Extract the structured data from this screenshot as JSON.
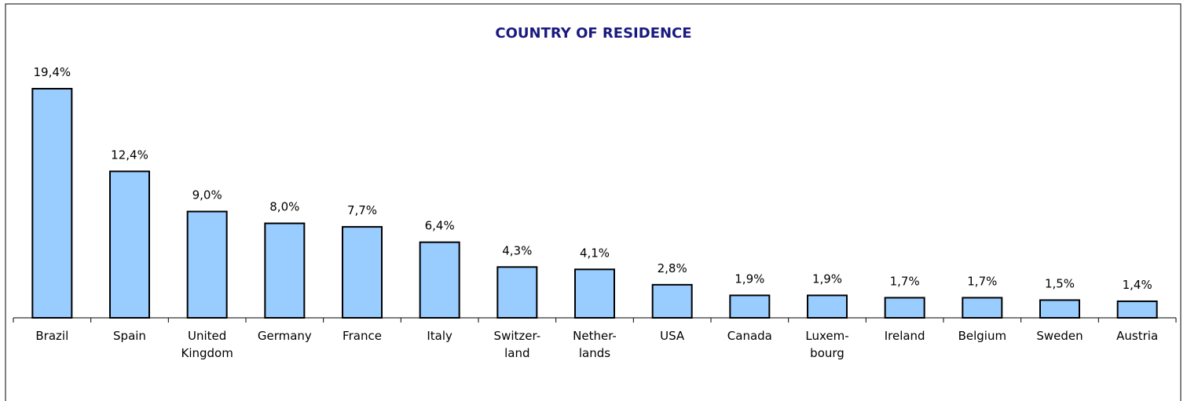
{
  "chart_data": {
    "type": "bar",
    "title": "COUNTRY OF RESIDENCE",
    "categories": [
      "Brazil",
      "Spain",
      "United\nKingdom",
      "Germany",
      "France",
      "Italy",
      "Switzer-\nland",
      "Nether-\nlands",
      "USA",
      "Canada",
      "Luxem-\nbourg",
      "Ireland",
      "Belgium",
      "Sweden",
      "Austria"
    ],
    "values": [
      19.4,
      12.4,
      9.0,
      8.0,
      7.7,
      6.4,
      4.3,
      4.1,
      2.8,
      1.9,
      1.9,
      1.7,
      1.7,
      1.5,
      1.4
    ],
    "value_labels": [
      "19,4%",
      "12,4%",
      "9,0%",
      "8,0%",
      "7,7%",
      "6,4%",
      "4,3%",
      "4,1%",
      "2,8%",
      "1,9%",
      "1,9%",
      "1,7%",
      "1,7%",
      "1,5%",
      "1,4%"
    ],
    "color": "#99ccff",
    "ylim": [
      0,
      20
    ]
  }
}
